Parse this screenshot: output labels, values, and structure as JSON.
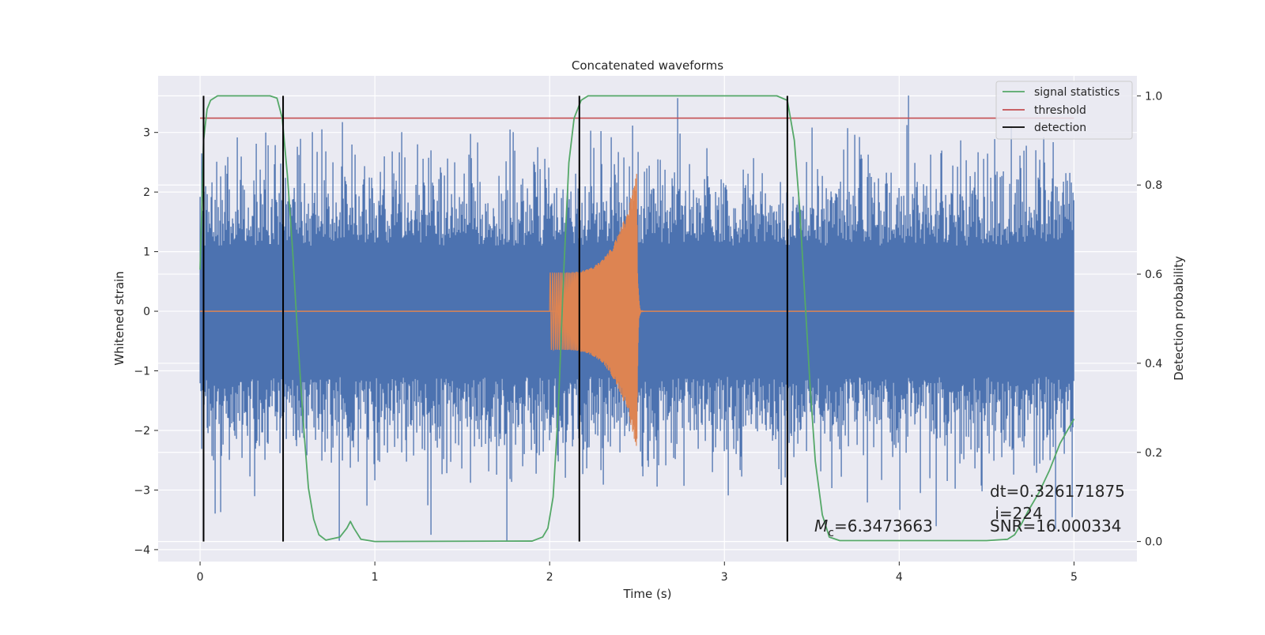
{
  "chart_data": {
    "type": "line",
    "title": "Concatenated waveforms",
    "xlabel": "Time (s)",
    "ylabel": "Whitened strain",
    "y2label": "Detection probability",
    "xlim": [
      -0.24,
      5.36
    ],
    "ylim": [
      -4.2,
      3.95
    ],
    "y2lim": [
      -0.045,
      1.045
    ],
    "x_ticks": [
      0,
      1,
      2,
      3,
      4,
      5
    ],
    "x_tick_labels": [
      "0",
      "1",
      "2",
      "3",
      "4",
      "5"
    ],
    "y_ticks": [
      -4,
      -3,
      -2,
      -1,
      0,
      1,
      2,
      3
    ],
    "y_tick_labels": [
      "−4",
      "−3",
      "−2",
      "−1",
      "0",
      "1",
      "2",
      "3"
    ],
    "y2_ticks": [
      0.0,
      0.2,
      0.4,
      0.6,
      0.8,
      1.0
    ],
    "y2_tick_labels": [
      "0.0",
      "0.2",
      "0.4",
      "0.6",
      "0.8",
      "1.0"
    ],
    "grid": true,
    "legend_position": "top-right",
    "series": [
      {
        "key": "noise",
        "axis": "left",
        "color": "#4c72b0",
        "style": "noise",
        "x_range": [
          0,
          5
        ],
        "core_amplitude": 0.85,
        "peak_amplitude_range": [
          -3.85,
          3.62
        ]
      },
      {
        "key": "waveform",
        "axis": "left",
        "color": "#dd8452",
        "style": "chirp",
        "x_range": [
          0,
          5
        ],
        "chirp_start": 2.0,
        "chirp_end": 2.5,
        "start_amplitude": 0.65,
        "peak_amplitude": 2.35
      },
      {
        "key": "signal_statistics",
        "name": "signal statistics",
        "axis": "right",
        "color": "#55a868",
        "points": [
          [
            0.0,
            0.61
          ],
          [
            0.01,
            0.75
          ],
          [
            0.02,
            0.9
          ],
          [
            0.04,
            0.97
          ],
          [
            0.06,
            0.99
          ],
          [
            0.1,
            1.0
          ],
          [
            0.4,
            1.0
          ],
          [
            0.44,
            0.995
          ],
          [
            0.47,
            0.95
          ],
          [
            0.5,
            0.82
          ],
          [
            0.53,
            0.65
          ],
          [
            0.56,
            0.45
          ],
          [
            0.59,
            0.27
          ],
          [
            0.62,
            0.12
          ],
          [
            0.65,
            0.05
          ],
          [
            0.68,
            0.015
          ],
          [
            0.72,
            0.003
          ],
          [
            0.8,
            0.01
          ],
          [
            0.84,
            0.03
          ],
          [
            0.86,
            0.045
          ],
          [
            0.88,
            0.03
          ],
          [
            0.92,
            0.005
          ],
          [
            1.0,
            0.0
          ],
          [
            1.9,
            0.001
          ],
          [
            1.96,
            0.01
          ],
          [
            1.99,
            0.03
          ],
          [
            2.02,
            0.1
          ],
          [
            2.05,
            0.3
          ],
          [
            2.08,
            0.6
          ],
          [
            2.11,
            0.85
          ],
          [
            2.14,
            0.95
          ],
          [
            2.18,
            0.99
          ],
          [
            2.22,
            1.0
          ],
          [
            3.3,
            1.0
          ],
          [
            3.36,
            0.99
          ],
          [
            3.4,
            0.9
          ],
          [
            3.43,
            0.75
          ],
          [
            3.46,
            0.55
          ],
          [
            3.49,
            0.35
          ],
          [
            3.52,
            0.18
          ],
          [
            3.56,
            0.06
          ],
          [
            3.6,
            0.01
          ],
          [
            3.66,
            0.002
          ],
          [
            4.5,
            0.002
          ],
          [
            4.62,
            0.005
          ],
          [
            4.66,
            0.015
          ],
          [
            4.7,
            0.04
          ],
          [
            4.74,
            0.07
          ],
          [
            4.8,
            0.11
          ],
          [
            4.86,
            0.16
          ],
          [
            4.92,
            0.22
          ],
          [
            5.0,
            0.275
          ]
        ]
      },
      {
        "key": "threshold",
        "name": "threshold",
        "axis": "right",
        "color": "#c44e52",
        "value": 0.95,
        "x_range": [
          0,
          5
        ]
      },
      {
        "key": "detection",
        "name": "detection",
        "axis": "right",
        "color": "#000000",
        "x_values": [
          0.02,
          0.475,
          2.17,
          3.36
        ],
        "y_range": [
          0.0,
          1.0
        ]
      }
    ],
    "annotations": [
      {
        "key": "mc",
        "symbol": "M",
        "subscript": "c",
        "value": "=6.3473663"
      },
      {
        "key": "dt",
        "text": "dt=0.326171875"
      },
      {
        "key": "i",
        "text": " i=224"
      },
      {
        "key": "snr",
        "text": "SNR=16.000334"
      }
    ]
  }
}
